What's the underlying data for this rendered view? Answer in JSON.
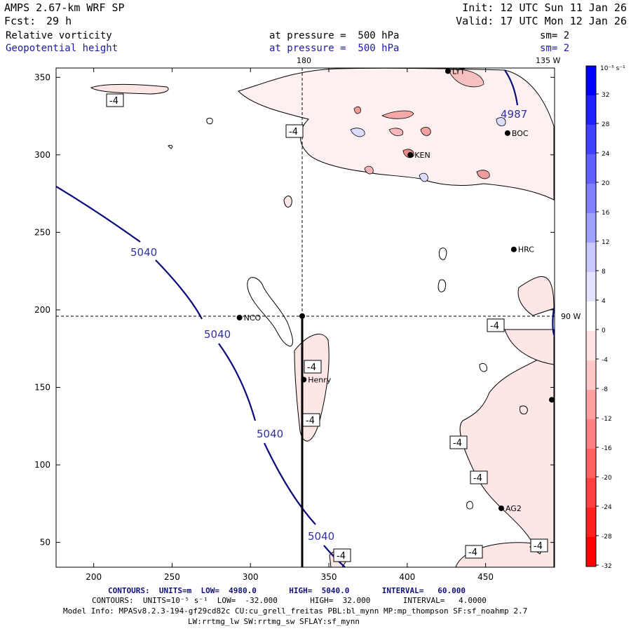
{
  "header": {
    "model": "AMPS 2.67-km WRF SP",
    "fcst_label": "Fcst:",
    "fcst_value": "29 h",
    "init": "Init: 12 UTC Sun 11 Jan 26",
    "valid": "Valid: 17 UTC Mon 12 Jan 26",
    "field1": "Relative vorticity",
    "field1_level": "at pressure =  500 hPa",
    "field1_sm": "sm= 2",
    "field2": "Geopotential height",
    "field2_level": "at pressure =  500 hPa",
    "field2_sm": "sm= 2"
  },
  "map": {
    "lon_labels": {
      "top_180": "180",
      "top_135w": "135 W",
      "right_90w": "90 W"
    },
    "x_ticks": [
      "200",
      "250",
      "300",
      "350",
      "400",
      "450"
    ],
    "y_ticks": [
      "50",
      "100",
      "150",
      "200",
      "250",
      "300",
      "350"
    ],
    "x_range": [
      176,
      494
    ],
    "y_range": [
      34,
      356
    ],
    "height_contours": [
      {
        "label": "5040"
      },
      {
        "label": "5040"
      },
      {
        "label": "5040"
      },
      {
        "label": "5040"
      }
    ],
    "high_label": "4987",
    "vort_labels": [
      "-4",
      "-4",
      "-4",
      "-4",
      "-4",
      "-4",
      "-4",
      "-4",
      "-4",
      "-4"
    ],
    "stations": [
      {
        "name": "NCO",
        "x": 293,
        "y": 195
      },
      {
        "name": "Henry",
        "x": 334,
        "y": 155
      },
      {
        "name": "HRC",
        "x": 468,
        "y": 239
      },
      {
        "name": "BOC",
        "x": 464,
        "y": 314
      },
      {
        "name": "KEN",
        "x": 402,
        "y": 300
      },
      {
        "name": "AG2",
        "x": 460,
        "y": 72
      },
      {
        "name": "LYT",
        "x": 426,
        "y": 354
      }
    ],
    "unlabeled_station": {
      "x": 494,
      "y": 142
    },
    "crosshair": {
      "x": 333,
      "y": 196
    }
  },
  "colorbar": {
    "units": "10⁻⁵ s⁻¹",
    "labels": [
      "32",
      "28",
      "24",
      "20",
      "16",
      "12",
      "8",
      "4",
      "0",
      "-4",
      "-8",
      "-12",
      "-16",
      "-20",
      "-24",
      "-28",
      "-32"
    ],
    "colors": [
      "#0000ff",
      "#2020ff",
      "#4040ff",
      "#6060ff",
      "#8080ff",
      "#a0a0ff",
      "#c8c8ff",
      "#e4e4ff",
      "#ffffff",
      "#ffe4e4",
      "#ffc8c8",
      "#ffa0a0",
      "#ff8080",
      "#ff6060",
      "#ff4040",
      "#ff2020",
      "#ff0000"
    ]
  },
  "footer": {
    "line1": "CONTOURS:  UNITS=m  LOW=  4980.0       HIGH=  5040.0       INTERVAL=   60.000",
    "line2": "CONTOURS:  UNITS=10⁻⁵ s⁻¹  LOW=  -32.000       HIGH=  32.000       INTERVAL=   4.0000",
    "line3": "Model Info: MPASv8.2.3-194-gf29cd82c CU:cu_grell_freitas PBL:bl_mynn MP:mp_thompson SF:sf_noahmp 2.7",
    "line4": "LW:rrtmg_lw SW:rrtmg_sw SFLAY:sf_mynn"
  }
}
